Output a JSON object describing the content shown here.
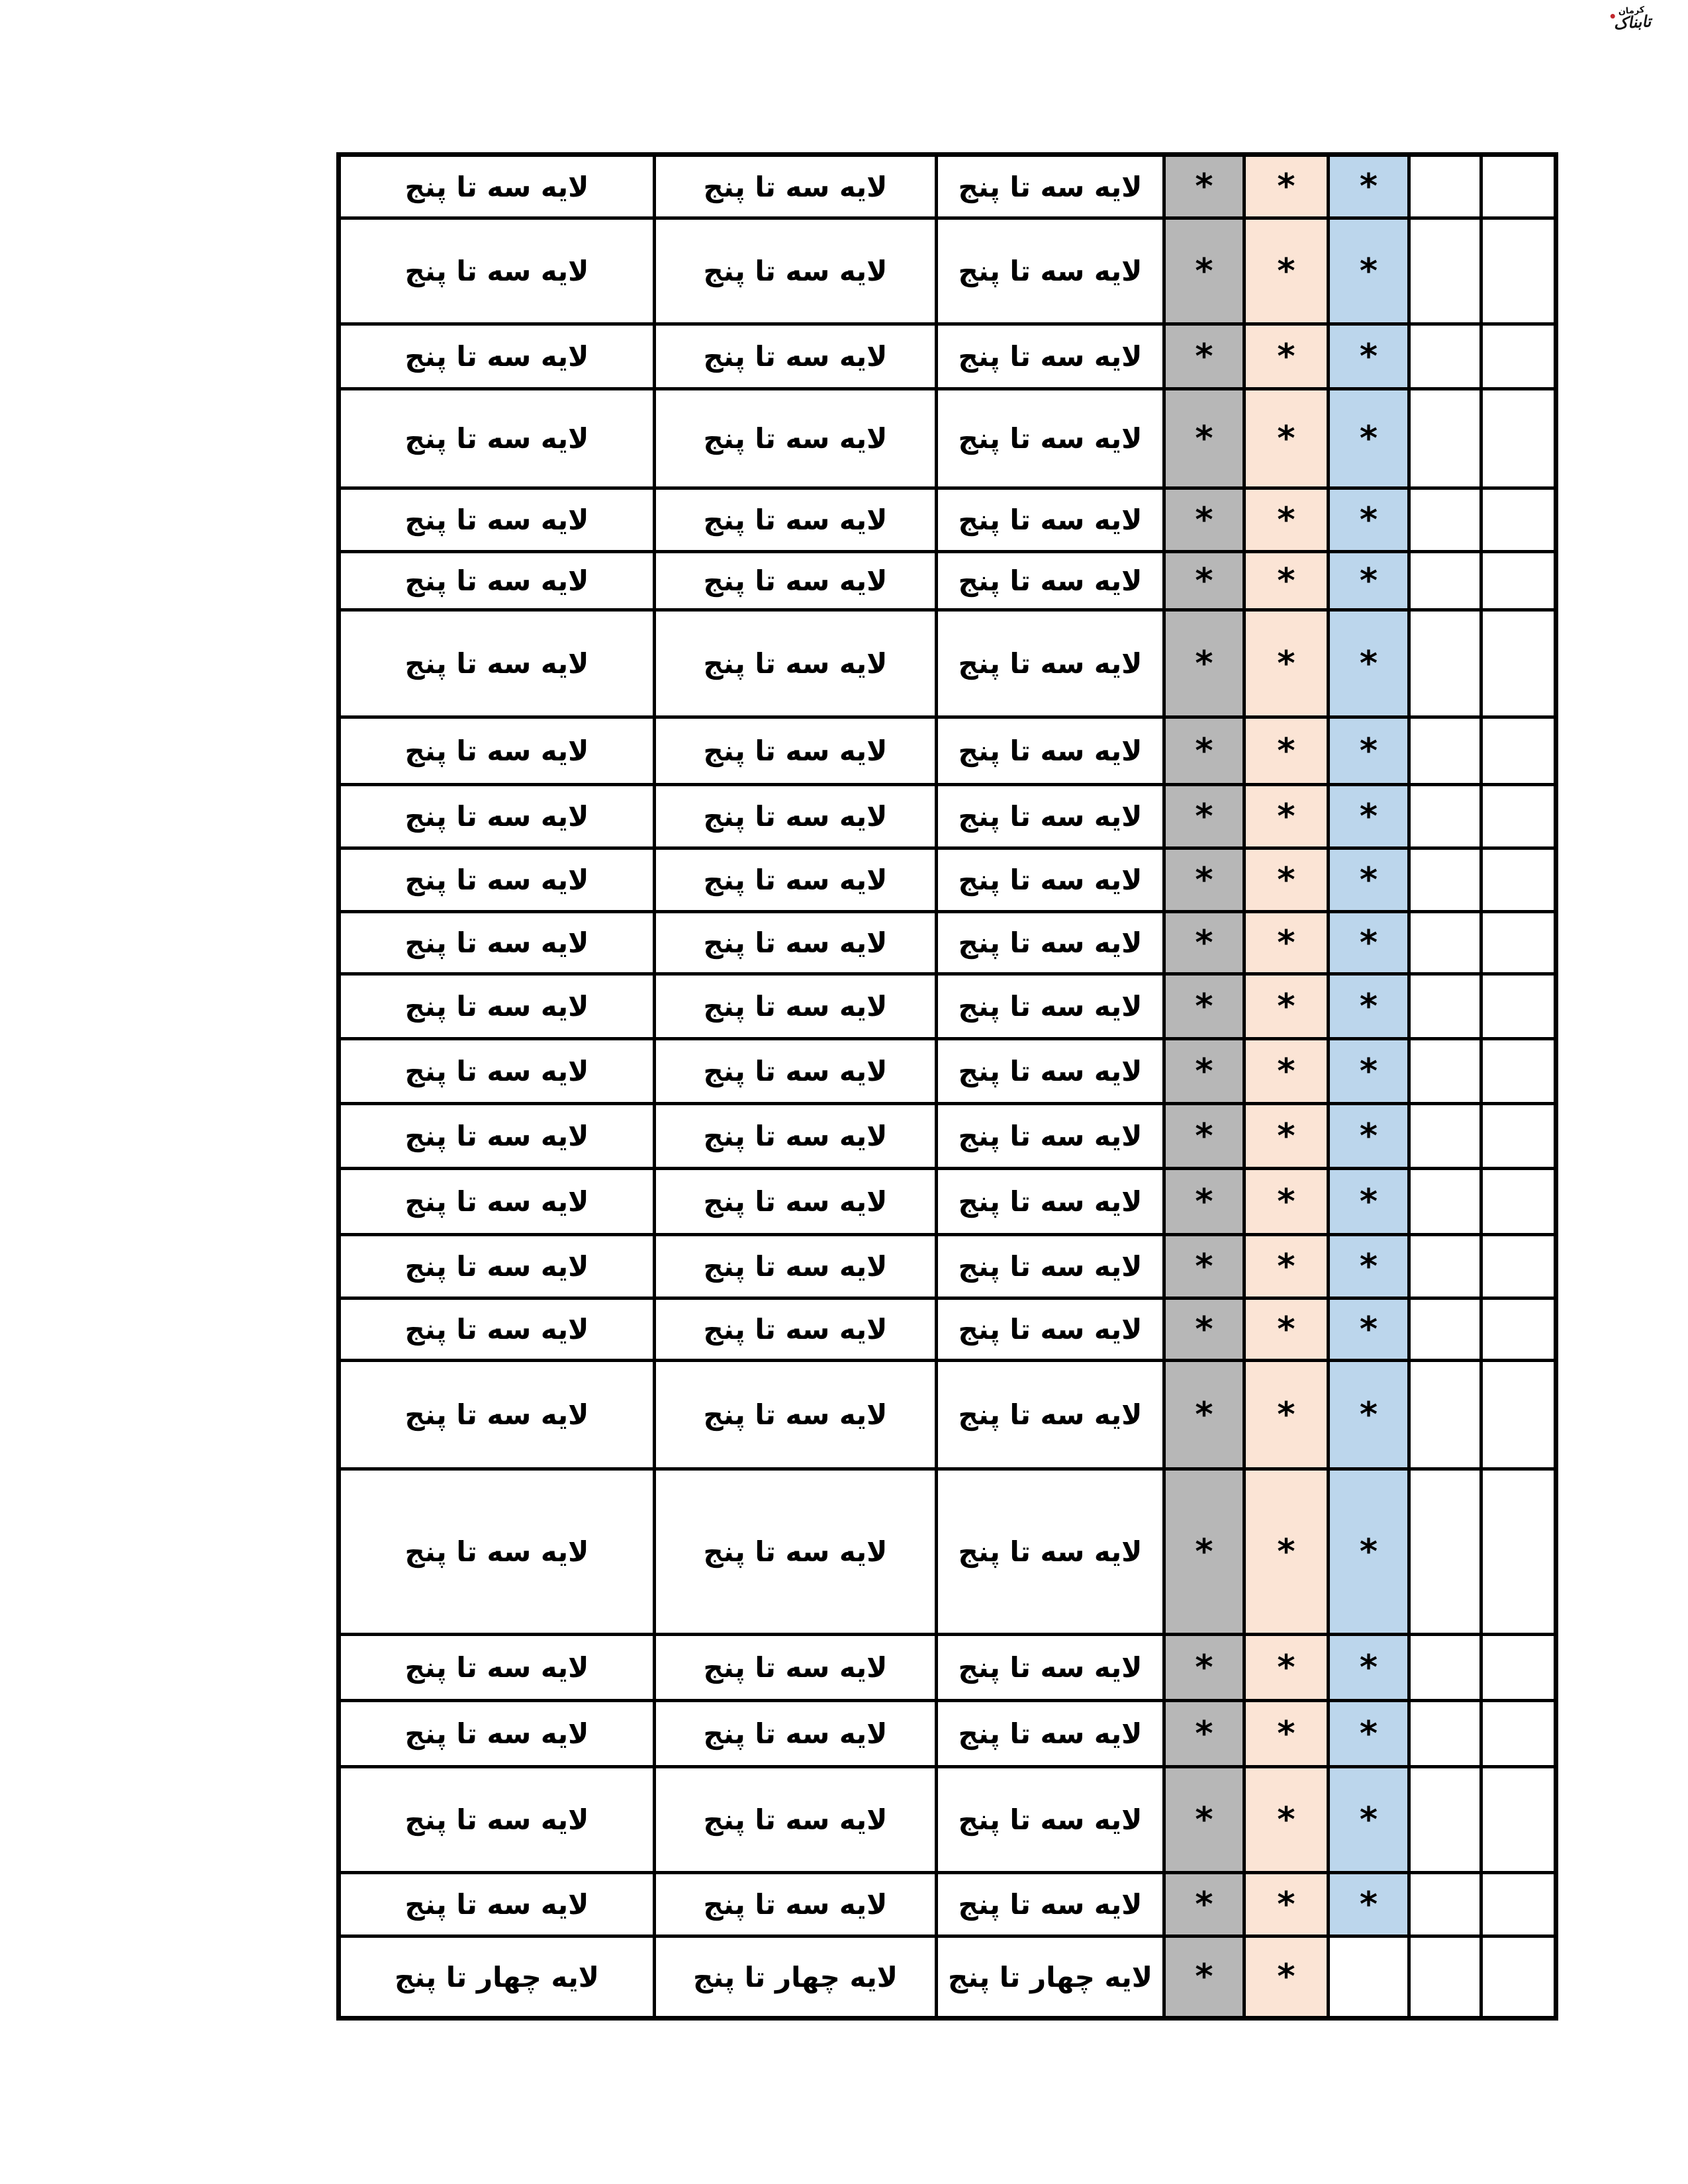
{
  "logo": {
    "city": "کرمان",
    "name": "تابناک"
  },
  "icons": {
    "logo_accent": "red-dot"
  },
  "table": {
    "colors": {
      "gray": "#b7b7b7",
      "peach": "#fbe4d5",
      "blue": "#bcd6ec",
      "border": "#000000"
    },
    "column_kinds": [
      "layer-text",
      "layer-text",
      "layer-text",
      "mark-gray",
      "mark-peach",
      "mark-blue",
      "empty",
      "empty"
    ],
    "rows": [
      {
        "labels": [
          "لایه سه تا پنج",
          "لایه سه تا پنج",
          "لایه سه تا پنج"
        ],
        "marks": [
          "*",
          "*",
          "*"
        ]
      },
      {
        "labels": [
          "لایه سه تا پنج",
          "لایه سه تا پنج",
          "لایه سه تا پنج"
        ],
        "marks": [
          "*",
          "*",
          "*"
        ]
      },
      {
        "labels": [
          "لایه سه تا پنج",
          "لایه سه تا پنج",
          "لایه سه تا پنج"
        ],
        "marks": [
          "*",
          "*",
          "*"
        ]
      },
      {
        "labels": [
          "لایه سه تا پنج",
          "لایه سه تا پنج",
          "لایه سه تا پنج"
        ],
        "marks": [
          "*",
          "*",
          "*"
        ]
      },
      {
        "labels": [
          "لایه سه تا پنج",
          "لایه سه تا پنج",
          "لایه سه تا پنج"
        ],
        "marks": [
          "*",
          "*",
          "*"
        ]
      },
      {
        "labels": [
          "لایه سه تا پنج",
          "لایه سه تا پنج",
          "لایه سه تا پنج"
        ],
        "marks": [
          "*",
          "*",
          "*"
        ]
      },
      {
        "labels": [
          "لایه سه تا پنج",
          "لایه سه تا پنج",
          "لایه سه تا پنج"
        ],
        "marks": [
          "*",
          "*",
          "*"
        ]
      },
      {
        "labels": [
          "لایه سه تا پنج",
          "لایه سه تا پنج",
          "لایه سه تا پنج"
        ],
        "marks": [
          "*",
          "*",
          "*"
        ]
      },
      {
        "labels": [
          "لایه سه تا پنج",
          "لایه سه تا پنج",
          "لایه سه تا پنج"
        ],
        "marks": [
          "*",
          "*",
          "*"
        ]
      },
      {
        "labels": [
          "لایه سه تا پنج",
          "لایه سه تا پنج",
          "لایه سه تا پنج"
        ],
        "marks": [
          "*",
          "*",
          "*"
        ]
      },
      {
        "labels": [
          "لایه سه تا پنج",
          "لایه سه تا پنج",
          "لایه سه تا پنج"
        ],
        "marks": [
          "*",
          "*",
          "*"
        ]
      },
      {
        "labels": [
          "لایه سه تا پنج",
          "لایه سه تا پنج",
          "لایه سه تا پنج"
        ],
        "marks": [
          "*",
          "*",
          "*"
        ]
      },
      {
        "labels": [
          "لایه سه تا پنج",
          "لایه سه تا پنج",
          "لایه سه تا پنج"
        ],
        "marks": [
          "*",
          "*",
          "*"
        ]
      },
      {
        "labels": [
          "لایه سه تا پنج",
          "لایه سه تا پنج",
          "لایه سه تا پنج"
        ],
        "marks": [
          "*",
          "*",
          "*"
        ]
      },
      {
        "labels": [
          "لایه سه تا پنج",
          "لایه سه تا پنج",
          "لایه سه تا پنج"
        ],
        "marks": [
          "*",
          "*",
          "*"
        ]
      },
      {
        "labels": [
          "لایه سه تا پنج",
          "لایه سه تا پنج",
          "لایه سه تا پنج"
        ],
        "marks": [
          "*",
          "*",
          "*"
        ]
      },
      {
        "labels": [
          "لایه سه تا پنج",
          "لایه سه تا پنج",
          "لایه سه تا پنج"
        ],
        "marks": [
          "*",
          "*",
          "*"
        ]
      },
      {
        "labels": [
          "لایه سه تا پنج",
          "لایه سه تا پنج",
          "لایه سه تا پنج"
        ],
        "marks": [
          "*",
          "*",
          "*"
        ]
      },
      {
        "labels": [
          "لایه سه تا پنج",
          "لایه سه تا پنج",
          "لایه سه تا پنج"
        ],
        "marks": [
          "*",
          "*",
          "*"
        ]
      },
      {
        "labels": [
          "لایه سه تا پنج",
          "لایه سه تا پنج",
          "لایه سه تا پنج"
        ],
        "marks": [
          "*",
          "*",
          "*"
        ]
      },
      {
        "labels": [
          "لایه سه تا پنج",
          "لایه سه تا پنج",
          "لایه سه تا پنج"
        ],
        "marks": [
          "*",
          "*",
          "*"
        ]
      },
      {
        "labels": [
          "لایه سه تا پنج",
          "لایه سه تا پنج",
          "لایه سه تا پنج"
        ],
        "marks": [
          "*",
          "*",
          "*"
        ]
      },
      {
        "labels": [
          "لایه سه تا پنج",
          "لایه سه تا پنج",
          "لایه سه تا پنج"
        ],
        "marks": [
          "*",
          "*",
          "*"
        ]
      },
      {
        "labels": [
          "لایه چهار تا پنج",
          "لایه چهار تا پنج",
          "لایه چهار تا پنج"
        ],
        "marks": [
          "*",
          "*",
          ""
        ]
      }
    ]
  }
}
